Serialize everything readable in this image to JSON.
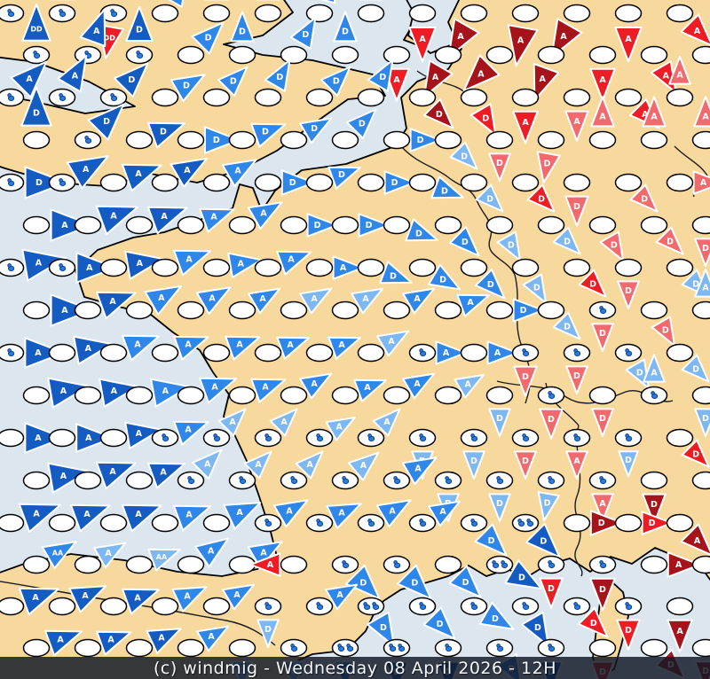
{
  "caption": {
    "text": "(c) windmig - Wednesday 08 April 2026 - 12H"
  },
  "palette": {
    "db": "#155cc2",
    "mb": "#2f87e9",
    "lb": "#7db8f2",
    "r": "#ee1c24",
    "dr": "#a6131a",
    "pr": "#f2696e",
    "sea": "#dce6ef",
    "land": "#f7d99d",
    "ellipse_fill": "#ffffff",
    "ellipse_stroke": "#000000",
    "letter": "#ffffff",
    "bird": "#2a7de2",
    "bird_outline": "#0a3e8f",
    "bar_bg": "rgba(17,24,38,0.84)",
    "bar_text": "#f4f7fa"
  },
  "markers": [
    [
      12,
      15,
      -90,
      15,
      "db",
      "DD",
      1
    ],
    [
      70,
      15,
      -90,
      14,
      "db",
      "D",
      1
    ],
    [
      128,
      15,
      100,
      14,
      "r",
      "DD",
      1
    ],
    [
      186,
      15,
      -60,
      13,
      "mb",
      "D",
      0
    ],
    [
      244,
      15,
      -90,
      13,
      "mb",
      "D",
      0
    ],
    [
      302,
      15,
      -90,
      13,
      "lb",
      "D",
      0
    ],
    [
      360,
      15,
      -75,
      14,
      "mb",
      "D",
      0
    ],
    [
      418,
      15,
      -90,
      13,
      "mb",
      "D",
      0
    ],
    [
      476,
      15,
      90,
      15,
      "r",
      "A",
      0
    ],
    [
      534,
      15,
      120,
      16,
      "dr",
      "A",
      0
    ],
    [
      592,
      15,
      100,
      17,
      "dr",
      "A",
      0
    ],
    [
      650,
      15,
      120,
      16,
      "dr",
      "A",
      0
    ],
    [
      708,
      15,
      90,
      15,
      "r",
      "A",
      0
    ],
    [
      766,
      15,
      45,
      14,
      "r",
      "A",
      0
    ],
    [
      41,
      62,
      -90,
      16,
      "db",
      "DD",
      1
    ],
    [
      99,
      62,
      -70,
      15,
      "db",
      "A",
      1
    ],
    [
      157,
      62,
      -90,
      15,
      "db",
      "D",
      1
    ],
    [
      215,
      62,
      -45,
      14,
      "mb",
      "D",
      0
    ],
    [
      273,
      62,
      -90,
      13,
      "mb",
      "D",
      0
    ],
    [
      331,
      62,
      -60,
      13,
      "mb",
      "D",
      0
    ],
    [
      389,
      62,
      -90,
      13,
      "mb",
      "D",
      0
    ],
    [
      447,
      62,
      90,
      14,
      "r",
      "A",
      0
    ],
    [
      505,
      62,
      120,
      15,
      "dr",
      "A",
      0
    ],
    [
      563,
      62,
      135,
      16,
      "dr",
      "A",
      0
    ],
    [
      621,
      62,
      110,
      15,
      "dr",
      "A",
      0
    ],
    [
      679,
      62,
      90,
      14,
      "r",
      "A",
      0
    ],
    [
      737,
      62,
      60,
      13,
      "r",
      "A",
      0
    ],
    [
      795,
      62,
      0,
      13,
      "r",
      "A",
      0
    ],
    [
      12,
      110,
      -45,
      16,
      "db",
      "A",
      1
    ],
    [
      70,
      110,
      -60,
      15,
      "db",
      "A",
      1
    ],
    [
      128,
      110,
      -45,
      15,
      "db",
      "D",
      1
    ],
    [
      186,
      110,
      -30,
      14,
      "mb",
      "D",
      0
    ],
    [
      244,
      110,
      -45,
      13,
      "mb",
      "D",
      0
    ],
    [
      302,
      110,
      -60,
      13,
      "mb",
      "D",
      0
    ],
    [
      360,
      110,
      -45,
      13,
      "mb",
      "D",
      0
    ],
    [
      418,
      110,
      -60,
      13,
      "mb",
      "D",
      0
    ],
    [
      476,
      110,
      45,
      13,
      "dr",
      "D",
      0
    ],
    [
      534,
      110,
      60,
      13,
      "r",
      "D",
      0
    ],
    [
      592,
      110,
      90,
      14,
      "r",
      "A",
      0
    ],
    [
      650,
      110,
      90,
      13,
      "pr",
      "A",
      0
    ],
    [
      708,
      110,
      45,
      13,
      "r",
      "A",
      0
    ],
    [
      766,
      110,
      -90,
      12,
      "pr",
      "A",
      0
    ],
    [
      41,
      158,
      -90,
      17,
      "db",
      "D",
      0
    ],
    [
      99,
      158,
      -45,
      16,
      "db",
      "D",
      1
    ],
    [
      157,
      158,
      -20,
      15,
      "db",
      "D",
      0
    ],
    [
      215,
      158,
      0,
      15,
      "mb",
      "D",
      0
    ],
    [
      273,
      158,
      -20,
      14,
      "mb",
      "D",
      0
    ],
    [
      331,
      158,
      -30,
      13,
      "mb",
      "D",
      0
    ],
    [
      389,
      158,
      -45,
      13,
      "mb",
      "D",
      0
    ],
    [
      447,
      158,
      0,
      13,
      "mb",
      "D",
      0
    ],
    [
      505,
      158,
      45,
      12,
      "lb",
      "D",
      0
    ],
    [
      563,
      158,
      90,
      12,
      "pr",
      "D",
      0
    ],
    [
      621,
      158,
      100,
      13,
      "pr",
      "D",
      0
    ],
    [
      679,
      158,
      -90,
      13,
      "pr",
      "A",
      0
    ],
    [
      737,
      158,
      -90,
      13,
      "pr",
      "A",
      0
    ],
    [
      795,
      158,
      -90,
      13,
      "pr",
      "A",
      0
    ],
    [
      12,
      206,
      0,
      18,
      "db",
      "D",
      1
    ],
    [
      70,
      206,
      -30,
      17,
      "db",
      "A",
      1
    ],
    [
      128,
      206,
      -20,
      16,
      "db",
      "A",
      0
    ],
    [
      186,
      206,
      -30,
      15,
      "db",
      "A",
      0
    ],
    [
      244,
      206,
      -30,
      14,
      "mb",
      "A",
      0
    ],
    [
      302,
      206,
      0,
      14,
      "mb",
      "D",
      0
    ],
    [
      360,
      206,
      -20,
      13,
      "mb",
      "D",
      0
    ],
    [
      418,
      206,
      0,
      13,
      "mb",
      "D",
      0
    ],
    [
      476,
      206,
      20,
      13,
      "mb",
      "D",
      0
    ],
    [
      534,
      206,
      45,
      12,
      "lb",
      "D",
      0
    ],
    [
      592,
      206,
      45,
      12,
      "r",
      "D",
      0
    ],
    [
      650,
      206,
      90,
      13,
      "pr",
      "D",
      0
    ],
    [
      708,
      206,
      45,
      12,
      "pr",
      "D",
      0
    ],
    [
      766,
      206,
      0,
      13,
      "pr",
      "A",
      0
    ],
    [
      41,
      254,
      0,
      18,
      "db",
      "A",
      0
    ],
    [
      99,
      254,
      -20,
      17,
      "db",
      "A",
      0
    ],
    [
      157,
      254,
      -20,
      16,
      "db",
      "A",
      0
    ],
    [
      215,
      254,
      -20,
      14,
      "mb",
      "A",
      0
    ],
    [
      273,
      254,
      -30,
      14,
      "mb",
      "A",
      0
    ],
    [
      331,
      254,
      0,
      13,
      "mb",
      "D",
      0
    ],
    [
      389,
      254,
      0,
      13,
      "mb",
      "D",
      0
    ],
    [
      447,
      254,
      20,
      13,
      "mb",
      "D",
      0
    ],
    [
      505,
      254,
      45,
      13,
      "mb",
      "D",
      0
    ],
    [
      563,
      254,
      60,
      12,
      "lb",
      "D",
      0
    ],
    [
      621,
      254,
      45,
      12,
      "lb",
      "D",
      0
    ],
    [
      679,
      254,
      60,
      12,
      "pr",
      "D",
      0
    ],
    [
      737,
      254,
      45,
      12,
      "pr",
      "D",
      0
    ],
    [
      795,
      254,
      90,
      12,
      "pr",
      "D",
      0
    ],
    [
      12,
      302,
      -10,
      18,
      "db",
      "A",
      1
    ],
    [
      70,
      302,
      0,
      17,
      "db",
      "A",
      1
    ],
    [
      128,
      302,
      -10,
      16,
      "db",
      "A",
      0
    ],
    [
      186,
      302,
      -20,
      15,
      "mb",
      "A",
      0
    ],
    [
      244,
      302,
      -10,
      14,
      "mb",
      "A",
      0
    ],
    [
      302,
      302,
      -20,
      14,
      "mb",
      "A",
      0
    ],
    [
      360,
      302,
      0,
      13,
      "mb",
      "A",
      0
    ],
    [
      418,
      302,
      20,
      13,
      "mb",
      "D",
      0
    ],
    [
      476,
      302,
      30,
      13,
      "mb",
      "D",
      0
    ],
    [
      534,
      302,
      45,
      13,
      "mb",
      "D",
      0
    ],
    [
      592,
      302,
      60,
      12,
      "lb",
      "D",
      0
    ],
    [
      650,
      302,
      45,
      12,
      "r",
      "D",
      0
    ],
    [
      708,
      302,
      90,
      12,
      "pr",
      "D",
      0
    ],
    [
      766,
      302,
      45,
      12,
      "lb",
      "D",
      0
    ],
    [
      41,
      350,
      0,
      18,
      "db",
      "A",
      0
    ],
    [
      99,
      350,
      -20,
      16,
      "db",
      "A",
      0
    ],
    [
      157,
      350,
      -30,
      15,
      "mb",
      "A",
      0
    ],
    [
      215,
      350,
      -30,
      14,
      "mb",
      "A",
      0
    ],
    [
      273,
      350,
      -30,
      13,
      "mb",
      "A",
      0
    ],
    [
      331,
      350,
      -30,
      13,
      "lb",
      "A",
      0
    ],
    [
      389,
      350,
      -30,
      13,
      "lb",
      "A",
      0
    ],
    [
      447,
      350,
      -30,
      13,
      "mb",
      "A",
      0
    ],
    [
      505,
      350,
      -20,
      13,
      "mb",
      "A",
      0
    ],
    [
      563,
      350,
      0,
      13,
      "mb",
      "D",
      0
    ],
    [
      621,
      350,
      45,
      12,
      "lb",
      "D",
      0
    ],
    [
      679,
      350,
      90,
      12,
      "pr",
      "D",
      1
    ],
    [
      737,
      350,
      60,
      12,
      "pr",
      "D",
      0
    ],
    [
      795,
      350,
      -90,
      12,
      "lb",
      "A",
      0
    ],
    [
      12,
      398,
      0,
      17,
      "db",
      "A",
      1
    ],
    [
      70,
      398,
      -10,
      16,
      "db",
      "A",
      0
    ],
    [
      128,
      398,
      -20,
      15,
      "mb",
      "A",
      0
    ],
    [
      186,
      398,
      -20,
      14,
      "mb",
      "A",
      0
    ],
    [
      244,
      398,
      -20,
      14,
      "mb",
      "A",
      0
    ],
    [
      302,
      398,
      -20,
      13,
      "mb",
      "A",
      0
    ],
    [
      360,
      398,
      -20,
      13,
      "mb",
      "A",
      0
    ],
    [
      418,
      398,
      -30,
      13,
      "lb",
      "A",
      0
    ],
    [
      476,
      398,
      0,
      13,
      "mb",
      "A",
      1
    ],
    [
      534,
      398,
      0,
      13,
      "mb",
      "A",
      0
    ],
    [
      592,
      398,
      90,
      13,
      "pr",
      "D",
      1
    ],
    [
      650,
      398,
      90,
      12,
      "pr",
      "D",
      1
    ],
    [
      708,
      398,
      60,
      12,
      "lb",
      "D",
      1
    ],
    [
      766,
      398,
      45,
      12,
      "lb",
      "D",
      0
    ],
    [
      41,
      446,
      -10,
      17,
      "db",
      "A",
      0
    ],
    [
      99,
      446,
      -10,
      16,
      "db",
      "A",
      0
    ],
    [
      157,
      446,
      -10,
      16,
      "mb",
      "A",
      0
    ],
    [
      215,
      446,
      -20,
      15,
      "mb",
      "A",
      0
    ],
    [
      273,
      446,
      -20,
      14,
      "mb",
      "A",
      0
    ],
    [
      331,
      446,
      -30,
      13,
      "mb",
      "A",
      0
    ],
    [
      389,
      446,
      -20,
      13,
      "mb",
      "A",
      0
    ],
    [
      447,
      446,
      -30,
      13,
      "mb",
      "A",
      0
    ],
    [
      505,
      446,
      -30,
      12,
      "lb",
      "A",
      0
    ],
    [
      563,
      446,
      90,
      12,
      "lb",
      "D",
      0
    ],
    [
      621,
      446,
      90,
      13,
      "pr",
      "D",
      1
    ],
    [
      679,
      446,
      90,
      12,
      "pr",
      "D",
      0
    ],
    [
      737,
      446,
      -90,
      12,
      "lb",
      "A",
      1
    ],
    [
      795,
      446,
      90,
      12,
      "lb",
      "D",
      0
    ],
    [
      12,
      494,
      0,
      17,
      "db",
      "A",
      0
    ],
    [
      70,
      494,
      0,
      16,
      "db",
      "A",
      0
    ],
    [
      128,
      494,
      -10,
      15,
      "db",
      "A",
      0
    ],
    [
      186,
      494,
      -20,
      14,
      "mb",
      "A",
      1
    ],
    [
      244,
      494,
      -45,
      12,
      "lb",
      "A",
      1
    ],
    [
      302,
      494,
      -45,
      12,
      "lb",
      "A",
      1
    ],
    [
      360,
      494,
      -30,
      12,
      "lb",
      "A",
      1
    ],
    [
      418,
      494,
      -45,
      12,
      "lb",
      "A",
      1
    ],
    [
      476,
      494,
      90,
      12,
      "lb",
      "D",
      1
    ],
    [
      534,
      494,
      90,
      12,
      "lb",
      "D",
      1
    ],
    [
      592,
      494,
      90,
      12,
      "pr",
      "D",
      1
    ],
    [
      650,
      494,
      90,
      12,
      "pr",
      "A",
      1
    ],
    [
      708,
      494,
      90,
      11,
      "lb",
      "D",
      1
    ],
    [
      766,
      494,
      45,
      12,
      "r",
      "D",
      0
    ],
    [
      41,
      542,
      -10,
      17,
      "db",
      "A",
      0
    ],
    [
      99,
      542,
      -20,
      16,
      "db",
      "A",
      0
    ],
    [
      157,
      542,
      -20,
      15,
      "db",
      "A",
      0
    ],
    [
      215,
      542,
      -45,
      13,
      "lb",
      "A",
      1
    ],
    [
      273,
      542,
      -45,
      12,
      "lb",
      "A",
      1
    ],
    [
      331,
      542,
      -45,
      12,
      "lb",
      "A",
      1
    ],
    [
      389,
      542,
      -40,
      13,
      "lb",
      "A",
      1
    ],
    [
      447,
      542,
      -30,
      14,
      "mb",
      "A",
      1
    ],
    [
      505,
      542,
      90,
      12,
      "lb",
      "D",
      1
    ],
    [
      563,
      542,
      90,
      12,
      "lb",
      "D",
      1
    ],
    [
      621,
      542,
      100,
      12,
      "lb",
      "D",
      1
    ],
    [
      679,
      542,
      90,
      12,
      "pr",
      "A",
      1
    ],
    [
      737,
      542,
      90,
      13,
      "dr",
      "D",
      0
    ],
    [
      795,
      542,
      0,
      13,
      "dr",
      "A",
      0
    ],
    [
      12,
      590,
      -20,
      17,
      "db",
      "A",
      0
    ],
    [
      70,
      590,
      -20,
      16,
      "db",
      "A",
      0
    ],
    [
      128,
      590,
      -20,
      16,
      "db",
      "A",
      0
    ],
    [
      186,
      590,
      -20,
      15,
      "mb",
      "A",
      0
    ],
    [
      244,
      590,
      -25,
      15,
      "mb",
      "A",
      0
    ],
    [
      302,
      590,
      -30,
      14,
      "mb",
      "A",
      1
    ],
    [
      360,
      590,
      -25,
      14,
      "mb",
      "A",
      1
    ],
    [
      418,
      590,
      -30,
      14,
      "mb",
      "A",
      1
    ],
    [
      476,
      590,
      -30,
      13,
      "mb",
      "A",
      1
    ],
    [
      534,
      590,
      45,
      14,
      "mb",
      "D",
      1
    ],
    [
      592,
      590,
      45,
      15,
      "db",
      "D",
      2
    ],
    [
      650,
      590,
      0,
      14,
      "dr",
      "D",
      0
    ],
    [
      708,
      590,
      0,
      13,
      "r",
      "D",
      0
    ],
    [
      766,
      590,
      45,
      14,
      "dr",
      "A",
      0
    ],
    [
      41,
      637,
      -30,
      14,
      "mb",
      "AA",
      0
    ],
    [
      99,
      637,
      -30,
      13,
      "lb",
      "A",
      0
    ],
    [
      157,
      637,
      -20,
      13,
      "lb",
      "AA",
      0
    ],
    [
      215,
      637,
      -35,
      14,
      "mb",
      "A",
      0
    ],
    [
      273,
      637,
      -30,
      14,
      "mb",
      "A",
      0
    ],
    [
      331,
      637,
      180,
      13,
      "r",
      "A",
      0
    ],
    [
      389,
      637,
      45,
      15,
      "mb",
      "D",
      1
    ],
    [
      447,
      637,
      45,
      15,
      "mb",
      "D",
      1
    ],
    [
      505,
      637,
      45,
      14,
      "mb",
      "D",
      0
    ],
    [
      563,
      637,
      30,
      15,
      "db",
      "D",
      2
    ],
    [
      621,
      637,
      90,
      13,
      "r",
      "D",
      1
    ],
    [
      679,
      637,
      90,
      14,
      "dr",
      "D",
      1
    ],
    [
      737,
      637,
      0,
      14,
      "dr",
      "A",
      0
    ],
    [
      795,
      637,
      0,
      13,
      "dr",
      "D",
      0
    ],
    [
      12,
      684,
      -20,
      16,
      "db",
      "A",
      0
    ],
    [
      70,
      684,
      -25,
      15,
      "db",
      "A",
      0
    ],
    [
      128,
      684,
      -20,
      15,
      "db",
      "A",
      0
    ],
    [
      186,
      684,
      -25,
      14,
      "mb",
      "A",
      0
    ],
    [
      244,
      684,
      -30,
      13,
      "mb",
      "A",
      0
    ],
    [
      302,
      684,
      90,
      12,
      "lb",
      "D",
      1
    ],
    [
      360,
      684,
      -30,
      13,
      "mb",
      "A",
      1
    ],
    [
      418,
      684,
      60,
      14,
      "mb",
      "D",
      2
    ],
    [
      476,
      684,
      45,
      14,
      "mb",
      "D",
      1
    ],
    [
      534,
      684,
      30,
      14,
      "mb",
      "D",
      1
    ],
    [
      592,
      684,
      60,
      14,
      "db",
      "D",
      1
    ],
    [
      650,
      684,
      45,
      13,
      "r",
      "D",
      1
    ],
    [
      708,
      684,
      90,
      13,
      "r",
      "D",
      1
    ],
    [
      766,
      684,
      90,
      14,
      "dr",
      "A",
      0
    ],
    [
      41,
      731,
      -20,
      15,
      "db",
      "A",
      0
    ],
    [
      99,
      731,
      -20,
      14,
      "db",
      "A",
      0
    ],
    [
      157,
      731,
      -25,
      14,
      "db",
      "A",
      0
    ],
    [
      215,
      731,
      -30,
      13,
      "mb",
      "A",
      0
    ],
    [
      273,
      731,
      90,
      12,
      "lb",
      "D",
      0
    ],
    [
      331,
      731,
      90,
      12,
      "lb",
      "D",
      1
    ],
    [
      389,
      731,
      90,
      12,
      "mb",
      "D",
      2
    ],
    [
      447,
      731,
      90,
      13,
      "db",
      "D",
      2
    ],
    [
      505,
      731,
      90,
      13,
      "db",
      "D",
      1
    ],
    [
      563,
      731,
      60,
      13,
      "mb",
      "D",
      1
    ],
    [
      621,
      731,
      90,
      13,
      "db",
      "D",
      1
    ],
    [
      679,
      731,
      90,
      13,
      "r",
      "D",
      0
    ],
    [
      737,
      731,
      45,
      13,
      "dr",
      "D",
      0
    ],
    [
      795,
      731,
      90,
      12,
      "dr",
      "D",
      0
    ]
  ]
}
